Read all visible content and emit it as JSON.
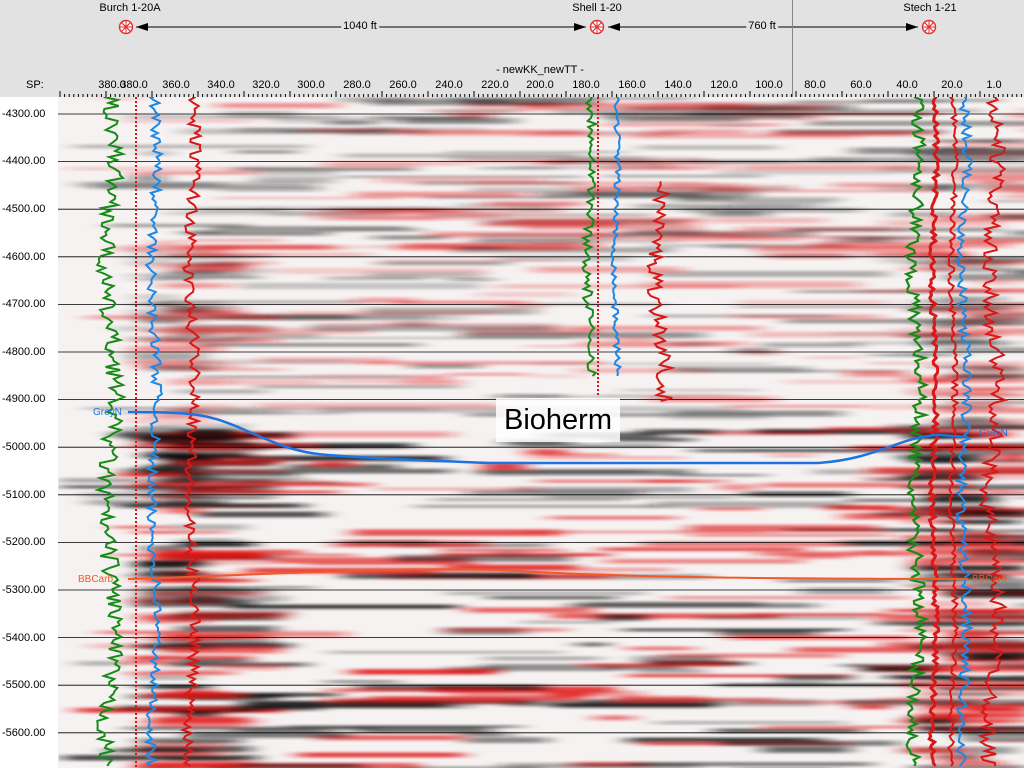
{
  "header": {
    "wells": [
      {
        "name": "Burch 1-20A"
      },
      {
        "name": "Shell 1-20"
      },
      {
        "name": "Stech 1-21"
      }
    ],
    "distances": [
      "1040 ft",
      "760 ft"
    ],
    "line_title": "- newKK_newTT -",
    "sp_label": "SP:",
    "sp_ticks": [
      "380.0",
      "380.0",
      "360.0",
      "340.0",
      "320.0",
      "300.0",
      "280.0",
      "260.0",
      "240.0",
      "220.0",
      "200.0",
      "180.0",
      "160.0",
      "140.0",
      "120.0",
      "100.0",
      "80.0",
      "60.0",
      "40.0",
      "20.0",
      "1.0"
    ]
  },
  "depth_axis": {
    "labels": [
      "-4300.00",
      "-4400.00",
      "-4500.00",
      "-4600.00",
      "-4700.00",
      "-4800.00",
      "-4900.00",
      "-5000.00",
      "-5100.00",
      "-5200.00",
      "-5300.00",
      "-5400.00",
      "-5500.00",
      "-5600.00"
    ]
  },
  "annotation": {
    "bioherm_label": "Bioherm"
  },
  "horizons": [
    {
      "name": "GreyN",
      "color": "#1e73e0"
    },
    {
      "name": "BBCarb",
      "color": "#f05a28"
    }
  ],
  "colors": {
    "seismic_positive": "#e01818",
    "seismic_negative": "#111111",
    "log_green": "#178a17",
    "log_blue": "#1e88e5",
    "log_red": "#d81818",
    "well_symbol": "#e03030"
  }
}
